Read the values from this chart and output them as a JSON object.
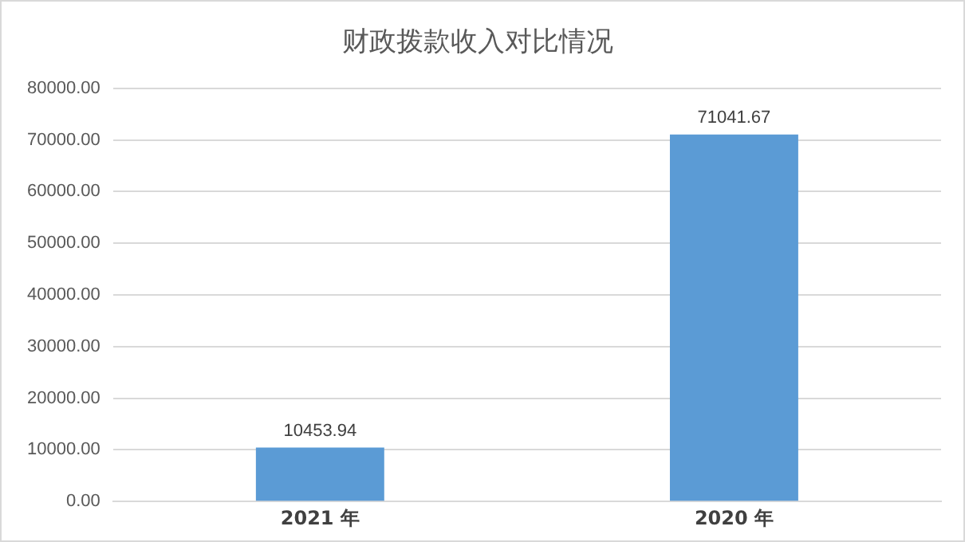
{
  "chart_data": {
    "type": "bar",
    "title": "财政拨款收入对比情况",
    "categories": [
      "2021 年",
      "2020 年"
    ],
    "values": [
      10453.94,
      71041.67
    ],
    "color": "#5b9bd5",
    "ylim": [
      0,
      80000
    ],
    "yticks": [
      {
        "value": 0,
        "label": "0.00"
      },
      {
        "value": 10000,
        "label": "10000.00"
      },
      {
        "value": 20000,
        "label": "20000.00"
      },
      {
        "value": 30000,
        "label": "30000.00"
      },
      {
        "value": 40000,
        "label": "40000.00"
      },
      {
        "value": 50000,
        "label": "50000.00"
      },
      {
        "value": 60000,
        "label": "60000.00"
      },
      {
        "value": 70000,
        "label": "70000.00"
      },
      {
        "value": 80000,
        "label": "80000.00"
      }
    ],
    "grid": "y",
    "data_labels": true
  }
}
